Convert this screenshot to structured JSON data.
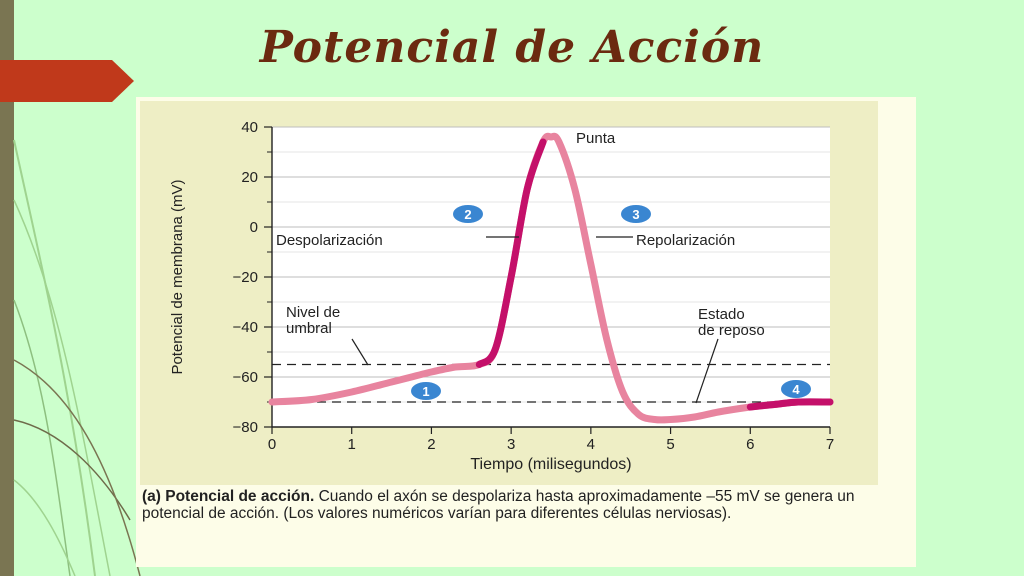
{
  "slide": {
    "title": "Potencial de Acción"
  },
  "caption": {
    "lead": "(a) Potencial de acción.",
    "body": " Cuando el axón se despolariza hasta aproximadamente –55 mV se genera un potencial de acción. (Los valores numéricos varían para diferentes células nerviosas)."
  },
  "colors": {
    "background": "#ccffcc",
    "title": "#6b2a10",
    "accent_arrow": "#c0391b",
    "curve_light": "#e8849f",
    "curve_dark": "#c4106a",
    "marker": "#3a86d1"
  },
  "chart_data": {
    "type": "line",
    "xlabel": "Tiempo (milisegundos)",
    "ylabel": "Potencial de membrana (mV)",
    "xlim": [
      0,
      7
    ],
    "ylim": [
      -80,
      40
    ],
    "xticks": [
      0,
      1,
      2,
      3,
      4,
      5,
      6,
      7
    ],
    "yticks": [
      40,
      20,
      0,
      -20,
      -40,
      -60,
      -80
    ],
    "grid": true,
    "series": [
      {
        "x": [
          0,
          0.5,
          1,
          1.5,
          2,
          2.3,
          2.6,
          2.8,
          3.0,
          3.2,
          3.4,
          3.5,
          3.6,
          3.8,
          4.0,
          4.2,
          4.4,
          4.6,
          4.8,
          5.0,
          5.3,
          5.6,
          6.0,
          6.3,
          6.6,
          7.0
        ],
        "y": [
          -70,
          -69,
          -66,
          -62,
          -58,
          -56,
          -55,
          -49,
          -20,
          15,
          34,
          36,
          34,
          15,
          -15,
          -45,
          -66,
          -75,
          -77,
          -77,
          -76,
          -74,
          -72,
          -71,
          -70,
          -70
        ]
      }
    ],
    "reference_lines": [
      {
        "y": -55,
        "style": "dashed"
      },
      {
        "y": -70,
        "style": "dashed"
      }
    ],
    "annotations": [
      {
        "text": "Punta"
      },
      {
        "text": "Despolarización"
      },
      {
        "text": "Repolarización"
      },
      {
        "text": "Nivel de"
      },
      {
        "text": "umbral"
      },
      {
        "text": "Estado"
      },
      {
        "text": "de reposo"
      }
    ],
    "markers": [
      "1",
      "2",
      "3",
      "4"
    ]
  }
}
